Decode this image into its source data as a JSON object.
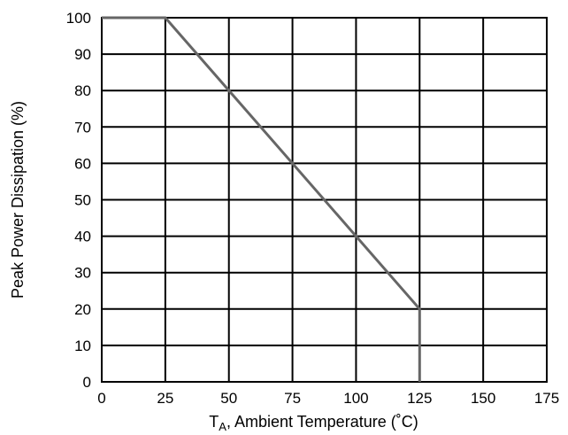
{
  "chart_data": {
    "type": "line",
    "xlabel": "TA, Ambient Temperature (°C)",
    "xlabel_main": "T",
    "xlabel_sub": "A",
    "xlabel_rest": ", Ambient Temperature (˚C)",
    "ylabel": "Peak Power Dissipation (%)",
    "xlim": [
      0,
      175
    ],
    "ylim": [
      0,
      100
    ],
    "x_ticks": [
      0,
      25,
      50,
      75,
      100,
      125,
      150,
      175
    ],
    "y_ticks": [
      0,
      10,
      20,
      30,
      40,
      50,
      60,
      70,
      80,
      90,
      100
    ],
    "grid": true,
    "legend": "none",
    "series": [
      {
        "color": "#666666",
        "points": [
          {
            "x": 0,
            "y": 100
          },
          {
            "x": 25,
            "y": 100
          },
          {
            "x": 125,
            "y": 20
          },
          {
            "x": 125,
            "y": 0
          }
        ]
      }
    ]
  }
}
